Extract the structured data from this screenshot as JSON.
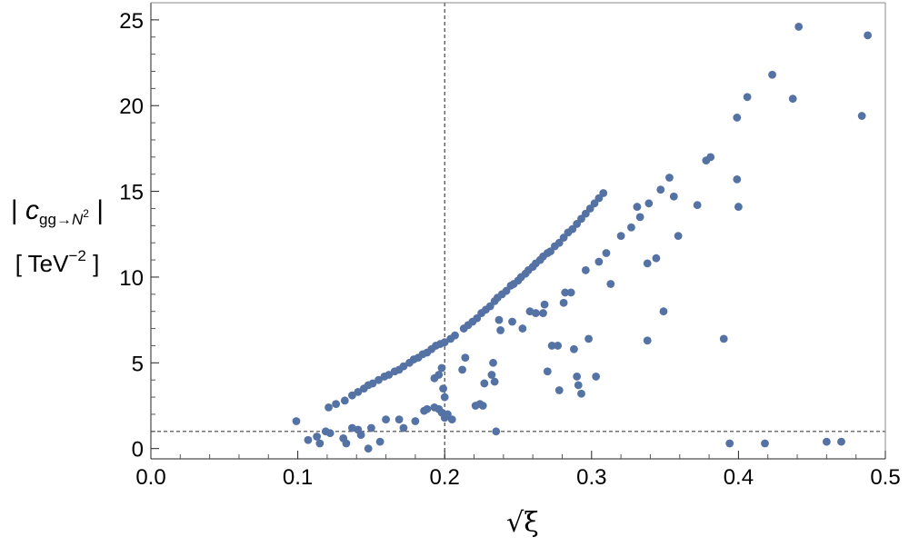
{
  "chart_data": {
    "type": "scatter",
    "title": "",
    "xlabel": "√ξ",
    "ylabel_line1": "|c_{gg→N²}|",
    "ylabel_line2": "[TeV^-2]",
    "ylabel_parts": {
      "c": "c",
      "sub_base": "gg→",
      "sub_N": "N",
      "sub_exp": "2",
      "unit_open": "[ TeV",
      "unit_exp": "−2",
      "unit_close": " ]"
    },
    "xlim": [
      0.0,
      0.5
    ],
    "ylim": [
      -0.6,
      26.0
    ],
    "xticks": [
      0.0,
      0.1,
      0.2,
      0.3,
      0.4,
      0.5
    ],
    "xtick_labels": [
      "0.0",
      "0.1",
      "0.2",
      "0.3",
      "0.4",
      "0.5"
    ],
    "yticks": [
      0,
      5,
      10,
      15,
      20,
      25
    ],
    "ytick_labels": [
      "0",
      "5",
      "10",
      "15",
      "20",
      "25"
    ],
    "reference_lines": {
      "vertical_x": 0.2,
      "horizontal_y": 1.0
    },
    "grid": false,
    "legend": "none",
    "marker_color": "#5472a4",
    "series": [
      {
        "points": [
          [
            0.121,
            2.4
          ],
          [
            0.126,
            2.6
          ],
          [
            0.132,
            2.8
          ],
          [
            0.137,
            3.1
          ],
          [
            0.141,
            3.3
          ],
          [
            0.145,
            3.5
          ],
          [
            0.148,
            3.7
          ],
          [
            0.151,
            3.8
          ],
          [
            0.155,
            4.0
          ],
          [
            0.159,
            4.2
          ],
          [
            0.162,
            4.3
          ],
          [
            0.166,
            4.5
          ],
          [
            0.169,
            4.6
          ],
          [
            0.172,
            4.8
          ],
          [
            0.176,
            5.0
          ],
          [
            0.179,
            5.2
          ],
          [
            0.182,
            5.3
          ],
          [
            0.185,
            5.5
          ],
          [
            0.188,
            5.6
          ],
          [
            0.191,
            5.8
          ],
          [
            0.194,
            6.0
          ],
          [
            0.197,
            6.1
          ],
          [
            0.2,
            6.2
          ],
          [
            0.204,
            6.4
          ],
          [
            0.207,
            6.6
          ],
          [
            0.213,
            7.0
          ],
          [
            0.216,
            7.2
          ],
          [
            0.219,
            7.4
          ],
          [
            0.222,
            7.6
          ],
          [
            0.225,
            7.9
          ],
          [
            0.228,
            8.1
          ],
          [
            0.231,
            8.3
          ],
          [
            0.234,
            8.6
          ],
          [
            0.236,
            8.8
          ],
          [
            0.239,
            9.0
          ],
          [
            0.242,
            9.2
          ],
          [
            0.245,
            9.5
          ],
          [
            0.247,
            9.6
          ],
          [
            0.25,
            9.8
          ],
          [
            0.252,
            10.0
          ],
          [
            0.255,
            10.2
          ],
          [
            0.257,
            10.4
          ],
          [
            0.26,
            10.6
          ],
          [
            0.262,
            10.8
          ],
          [
            0.265,
            11.0
          ],
          [
            0.267,
            11.2
          ],
          [
            0.27,
            11.4
          ],
          [
            0.272,
            11.5
          ],
          [
            0.275,
            11.8
          ],
          [
            0.278,
            12.0
          ],
          [
            0.281,
            12.3
          ],
          [
            0.284,
            12.6
          ],
          [
            0.287,
            12.8
          ],
          [
            0.29,
            13.1
          ],
          [
            0.293,
            13.4
          ],
          [
            0.296,
            13.7
          ],
          [
            0.299,
            14.0
          ],
          [
            0.302,
            14.3
          ],
          [
            0.305,
            14.6
          ],
          [
            0.308,
            14.9
          ],
          [
            0.238,
            6.9
          ],
          [
            0.246,
            7.4
          ],
          [
            0.262,
            7.9
          ],
          [
            0.268,
            8.4
          ],
          [
            0.282,
            9.1
          ],
          [
            0.296,
            10.4
          ],
          [
            0.305,
            10.9
          ],
          [
            0.31,
            11.4
          ],
          [
            0.32,
            12.4
          ],
          [
            0.327,
            12.9
          ],
          [
            0.333,
            13.5
          ],
          [
            0.339,
            14.3
          ],
          [
            0.347,
            15.1
          ],
          [
            0.353,
            15.8
          ],
          [
            0.372,
            14.2
          ],
          [
            0.378,
            16.8
          ],
          [
            0.381,
            17.0
          ],
          [
            0.399,
            15.7
          ],
          [
            0.399,
            19.3
          ],
          [
            0.406,
            20.5
          ],
          [
            0.423,
            21.8
          ],
          [
            0.437,
            20.4
          ],
          [
            0.441,
            24.6
          ],
          [
            0.484,
            19.4
          ],
          [
            0.488,
            24.1
          ],
          [
            0.099,
            1.6
          ],
          [
            0.107,
            0.5
          ],
          [
            0.113,
            0.7
          ],
          [
            0.115,
            0.3
          ],
          [
            0.119,
            1.0
          ],
          [
            0.122,
            0.9
          ],
          [
            0.131,
            0.6
          ],
          [
            0.133,
            0.3
          ],
          [
            0.137,
            1.2
          ],
          [
            0.141,
            1.1
          ],
          [
            0.143,
            0.8
          ],
          [
            0.148,
            0.0
          ],
          [
            0.15,
            1.2
          ],
          [
            0.156,
            0.4
          ],
          [
            0.16,
            1.7
          ],
          [
            0.169,
            1.7
          ],
          [
            0.172,
            1.2
          ],
          [
            0.18,
            1.6
          ],
          [
            0.186,
            2.2
          ],
          [
            0.188,
            2.3
          ],
          [
            0.193,
            2.4
          ],
          [
            0.196,
            2.3
          ],
          [
            0.198,
            2.1
          ],
          [
            0.2,
            1.8
          ],
          [
            0.202,
            2.0
          ],
          [
            0.205,
            1.7
          ],
          [
            0.193,
            4.1
          ],
          [
            0.196,
            4.3
          ],
          [
            0.198,
            4.7
          ],
          [
            0.199,
            3.5
          ],
          [
            0.2,
            3.0
          ],
          [
            0.212,
            4.6
          ],
          [
            0.214,
            5.3
          ],
          [
            0.221,
            2.5
          ],
          [
            0.224,
            2.6
          ],
          [
            0.226,
            2.5
          ],
          [
            0.227,
            3.8
          ],
          [
            0.232,
            4.3
          ],
          [
            0.233,
            5.0
          ],
          [
            0.234,
            3.9
          ],
          [
            0.235,
            1.0
          ],
          [
            0.237,
            7.5
          ],
          [
            0.253,
            7.0
          ],
          [
            0.258,
            8.0
          ],
          [
            0.267,
            7.9
          ],
          [
            0.27,
            4.5
          ],
          [
            0.273,
            6.0
          ],
          [
            0.277,
            6.0
          ],
          [
            0.278,
            3.4
          ],
          [
            0.281,
            8.5
          ],
          [
            0.286,
            9.1
          ],
          [
            0.288,
            5.8
          ],
          [
            0.29,
            4.2
          ],
          [
            0.291,
            3.7
          ],
          [
            0.293,
            3.2
          ],
          [
            0.298,
            6.4
          ],
          [
            0.303,
            4.2
          ],
          [
            0.313,
            9.6
          ],
          [
            0.331,
            14.1
          ],
          [
            0.338,
            6.3
          ],
          [
            0.338,
            10.8
          ],
          [
            0.344,
            11.1
          ],
          [
            0.349,
            8.0
          ],
          [
            0.356,
            14.7
          ],
          [
            0.359,
            12.4
          ],
          [
            0.39,
            6.4
          ],
          [
            0.394,
            0.3
          ],
          [
            0.4,
            14.1
          ],
          [
            0.418,
            0.3
          ],
          [
            0.46,
            0.4
          ],
          [
            0.47,
            0.4
          ]
        ]
      }
    ]
  }
}
